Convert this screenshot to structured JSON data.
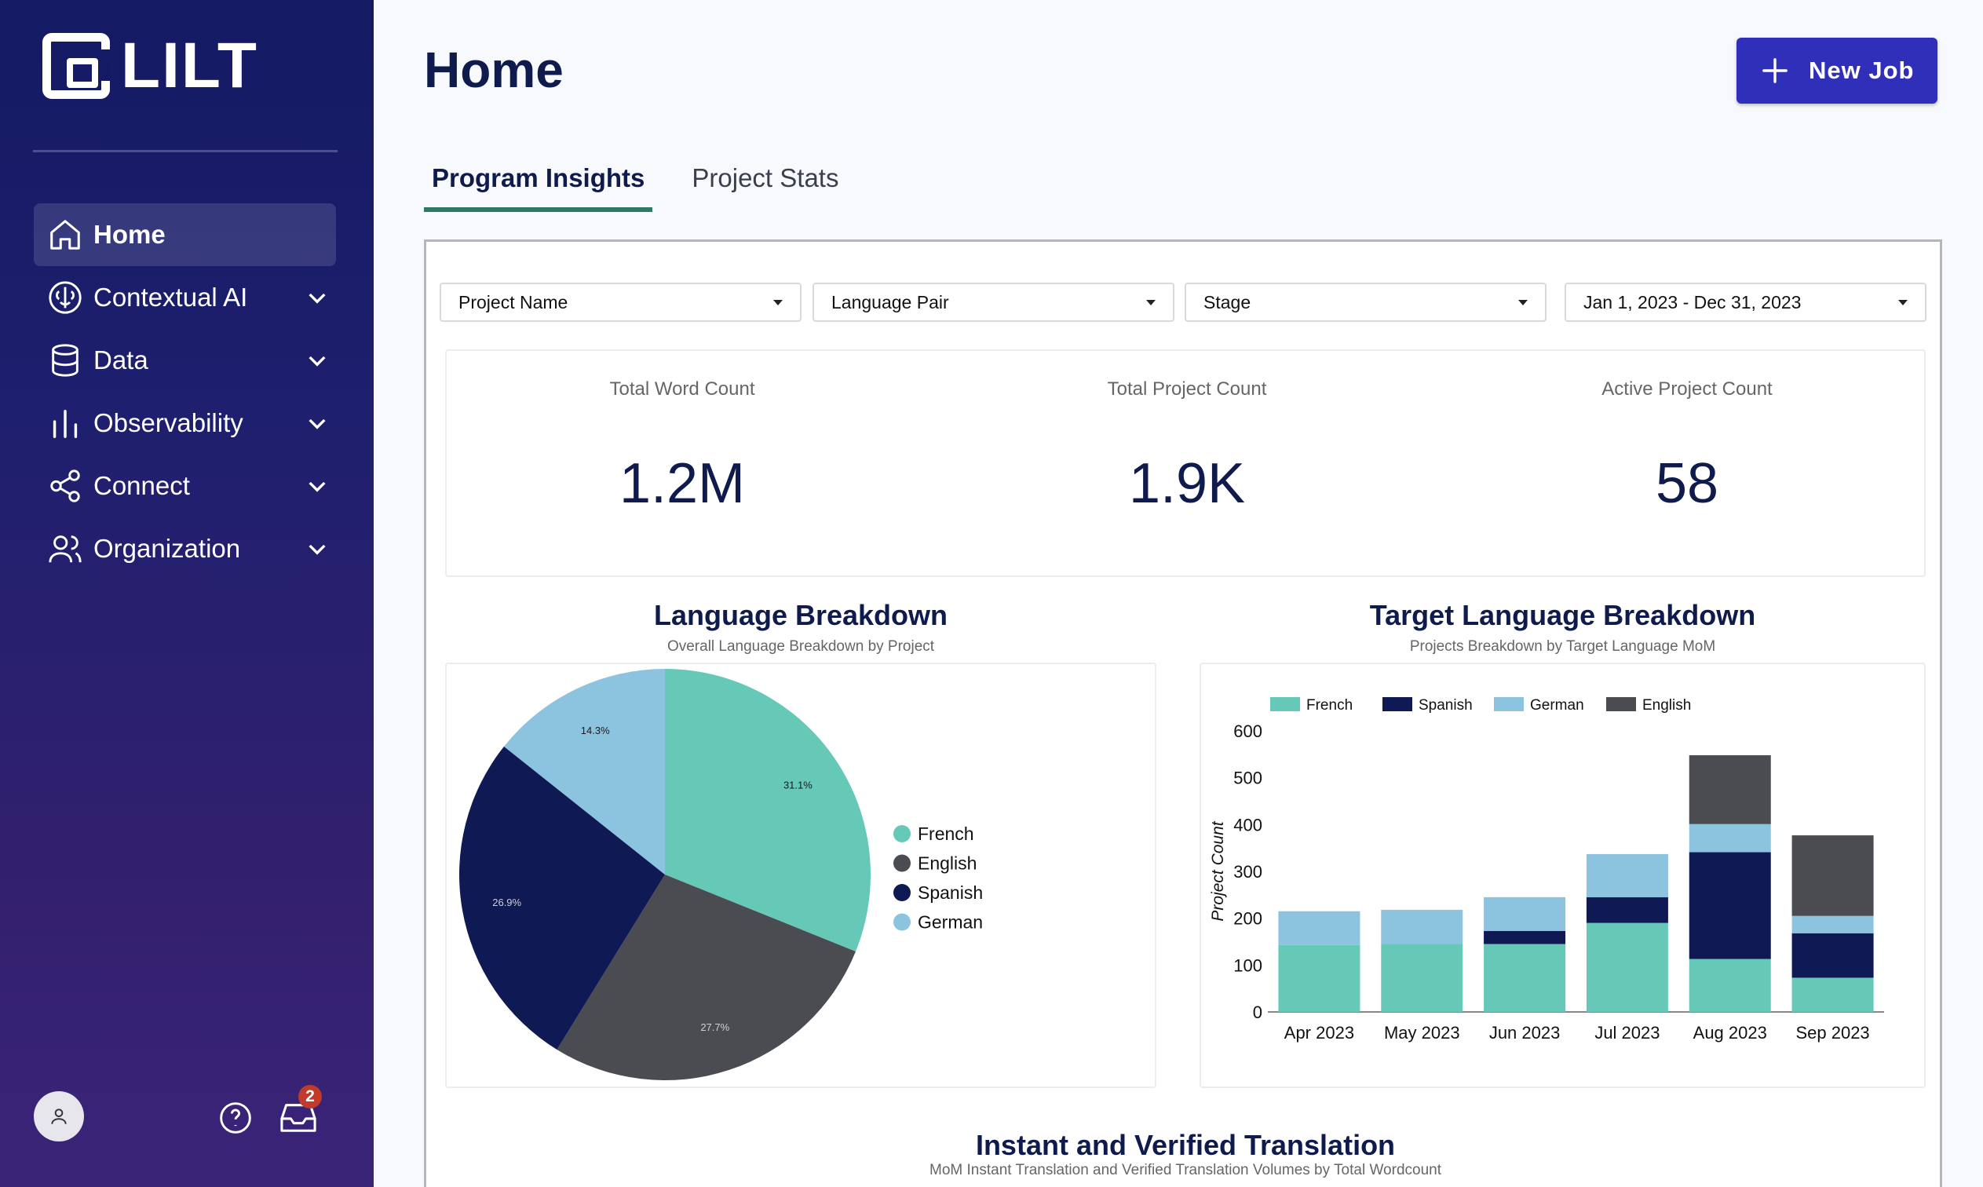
{
  "app": {
    "logo_text": "LILT"
  },
  "sidebar": {
    "items": [
      {
        "label": "Home",
        "icon": "home-icon",
        "active": true,
        "expandable": false
      },
      {
        "label": "Contextual AI",
        "icon": "brain-icon",
        "active": false,
        "expandable": true
      },
      {
        "label": "Data",
        "icon": "database-icon",
        "active": false,
        "expandable": true
      },
      {
        "label": "Observability",
        "icon": "bar-chart-icon",
        "active": false,
        "expandable": true
      },
      {
        "label": "Connect",
        "icon": "share-icon",
        "active": false,
        "expandable": true
      },
      {
        "label": "Organization",
        "icon": "users-icon",
        "active": false,
        "expandable": true
      }
    ],
    "inbox_badge": "2"
  },
  "header": {
    "title": "Home",
    "new_job_label": "New Job"
  },
  "tabs": [
    {
      "label": "Program Insights",
      "active": true
    },
    {
      "label": "Project Stats",
      "active": false
    }
  ],
  "filters": {
    "project_name": "Project Name",
    "language_pair": "Language Pair",
    "stage": "Stage",
    "date_range": "Jan 1, 2023 - Dec 31, 2023"
  },
  "kpis": [
    {
      "label": "Total Word Count",
      "value": "1.2M"
    },
    {
      "label": "Total Project Count",
      "value": "1.9K"
    },
    {
      "label": "Active Project Count",
      "value": "58"
    }
  ],
  "colors": {
    "french": "#66c9b8",
    "english": "#4a4c52",
    "spanish": "#0f1a55",
    "german": "#8cc4df",
    "accent": "#2f2fb9",
    "tab_underline": "#2e7a66"
  },
  "language_breakdown": {
    "title": "Language Breakdown",
    "subtitle": "Overall Language Breakdown by Project"
  },
  "target_breakdown": {
    "title": "Target Language Breakdown",
    "subtitle": "Projects Breakdown by Target Language MoM"
  },
  "bottom_section": {
    "title": "Instant and Verified Translation",
    "subtitle": "MoM Instant Translation and Verified Translation Volumes by Total Wordcount"
  },
  "chart_data": [
    {
      "type": "pie",
      "title": "Language Breakdown",
      "subtitle": "Overall Language Breakdown by Project",
      "slices": [
        {
          "label": "French",
          "value": 31.1,
          "color": "#66c9b8",
          "text": "31.1%"
        },
        {
          "label": "English",
          "value": 27.7,
          "color": "#4a4c52",
          "text": "27.7%"
        },
        {
          "label": "Spanish",
          "value": 26.9,
          "color": "#0f1a55",
          "text": "26.9%"
        },
        {
          "label": "German",
          "value": 14.3,
          "color": "#8cc4df",
          "text": "14.3%"
        }
      ],
      "legend": [
        "French",
        "English",
        "Spanish",
        "German"
      ],
      "legend_position": "right"
    },
    {
      "type": "bar",
      "stacked": true,
      "title": "Target Language Breakdown",
      "subtitle": "Projects Breakdown by Target Language MoM",
      "categories": [
        "Apr 2023",
        "May 2023",
        "Jun 2023",
        "Jul 2023",
        "Aug 2023",
        "Sep 2023"
      ],
      "series": [
        {
          "name": "French",
          "color": "#66c9b8",
          "values": [
            143,
            145,
            145,
            190,
            113,
            73
          ]
        },
        {
          "name": "Spanish",
          "color": "#0f1a55",
          "values": [
            0,
            0,
            28,
            55,
            228,
            95
          ]
        },
        {
          "name": "German",
          "color": "#8cc4df",
          "values": [
            72,
            73,
            72,
            92,
            60,
            37
          ]
        },
        {
          "name": "English",
          "color": "#4a4c52",
          "values": [
            0,
            0,
            0,
            0,
            147,
            172
          ]
        }
      ],
      "ylabel": "Project Count",
      "xlabel": "",
      "ylim": [
        0,
        600
      ],
      "yticks": [
        0,
        100,
        200,
        300,
        400,
        500,
        600
      ],
      "legend_position": "top-left",
      "grid": false
    }
  ]
}
